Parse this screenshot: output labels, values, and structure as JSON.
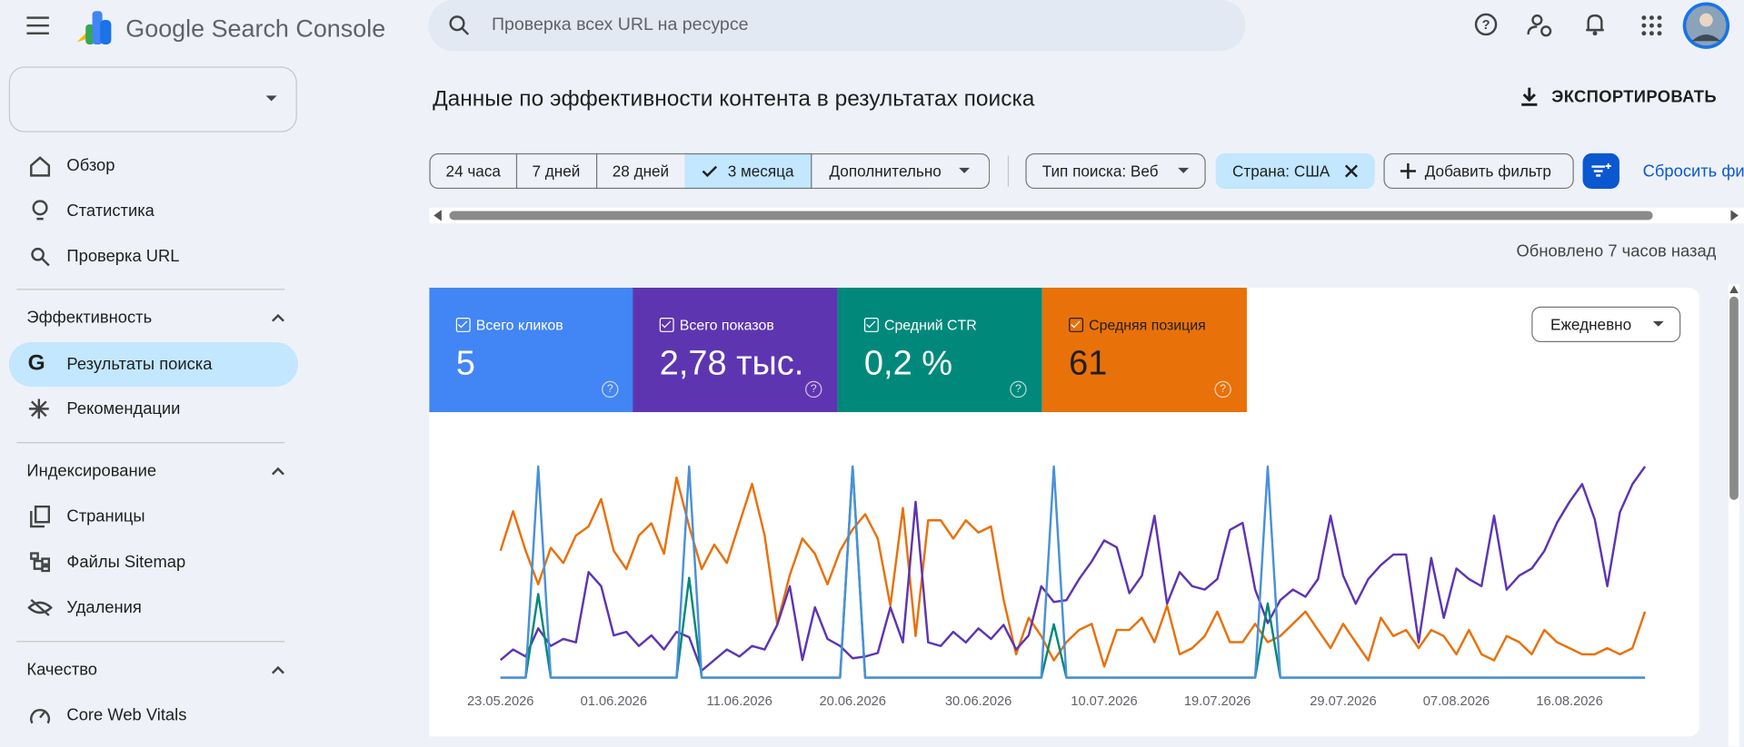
{
  "header": {
    "product": "Google Search Console",
    "search_placeholder": "Проверка всех URL на ресурсе"
  },
  "sidebar": {
    "nav": [
      "Обзор",
      "Статистика",
      "Проверка URL"
    ],
    "sections": [
      {
        "title": "Эффективность",
        "items": [
          "Результаты поиска",
          "Рекомендации"
        ]
      },
      {
        "title": "Индексирование",
        "items": [
          "Страницы",
          "Файлы Sitemap",
          "Удаления"
        ]
      },
      {
        "title": "Качество",
        "items": [
          "Core Web Vitals"
        ]
      }
    ]
  },
  "page": {
    "title": "Данные по эффективности контента в результатах поиска",
    "export": "ЭКСПОРТИРОВАТЬ",
    "ranges": [
      "24 часа",
      "7 дней",
      "28 дней",
      "3 месяца",
      "Дополнительно"
    ],
    "filters": [
      "Тип поиска: Веб",
      "Страна: США",
      "Добавить фильтр"
    ],
    "reset": "Сбросить фильтры",
    "updated": "Обновлено 7 часов назад",
    "granularity": "Ежедневно",
    "metrics": [
      {
        "label": "Всего кликов",
        "value": "5"
      },
      {
        "label": "Всего показов",
        "value": "2,78 тыс."
      },
      {
        "label": "Средний CTR",
        "value": "0,2 %"
      },
      {
        "label": "Средняя позиция",
        "value": "61"
      }
    ]
  },
  "chart_data": {
    "type": "line",
    "categories": [
      "23.05.2026",
      null,
      null,
      null,
      null,
      null,
      null,
      null,
      null,
      "01.06.2026",
      null,
      null,
      null,
      null,
      null,
      null,
      null,
      null,
      null,
      "11.06.2026",
      null,
      null,
      null,
      null,
      null,
      null,
      null,
      null,
      "20.06.2026",
      null,
      null,
      null,
      null,
      null,
      null,
      null,
      null,
      null,
      "30.06.2026",
      null,
      null,
      null,
      null,
      null,
      null,
      null,
      null,
      null,
      "10.07.2026",
      null,
      null,
      null,
      null,
      null,
      null,
      null,
      null,
      "19.07.2026",
      null,
      null,
      null,
      null,
      null,
      null,
      null,
      null,
      null,
      "29.07.2026",
      null,
      null,
      null,
      null,
      null,
      null,
      null,
      null,
      "07.08.2026",
      null,
      null,
      null,
      null,
      null,
      null,
      null,
      null,
      "16.08.2026",
      null,
      null,
      null,
      null,
      null,
      null
    ],
    "series": [
      {
        "name": "Всего кликов",
        "color": "#4a90d9",
        "values": [
          0,
          0,
          0,
          1,
          0,
          0,
          0,
          0,
          0,
          0,
          0,
          0,
          0,
          0,
          0,
          1,
          0,
          0,
          0,
          0,
          0,
          0,
          0,
          0,
          0,
          0,
          0,
          0,
          1,
          0,
          0,
          0,
          0,
          0,
          0,
          0,
          0,
          0,
          0,
          0,
          0,
          0,
          0,
          0,
          1,
          0,
          0,
          0,
          0,
          0,
          0,
          0,
          0,
          0,
          0,
          0,
          0,
          0,
          0,
          0,
          0,
          1,
          0,
          0,
          0,
          0,
          0,
          0,
          0,
          0,
          0,
          0,
          0,
          0,
          0,
          0,
          0,
          0,
          0,
          0,
          0,
          0,
          0,
          0,
          0,
          0,
          0,
          0,
          0,
          0,
          0,
          0
        ]
      },
      {
        "name": "Всего показов",
        "color": "#5e35b1",
        "values": [
          10,
          16,
          12,
          28,
          18,
          22,
          20,
          60,
          52,
          24,
          26,
          18,
          24,
          16,
          26,
          23,
          4,
          10,
          16,
          12,
          18,
          16,
          30,
          52,
          10,
          40,
          22,
          18,
          11,
          12,
          14,
          40,
          20,
          100,
          20,
          18,
          26,
          20,
          28,
          22,
          30,
          16,
          24,
          52,
          43,
          44,
          56,
          66,
          78,
          74,
          48,
          58,
          92,
          42,
          60,
          52,
          50,
          56,
          84,
          88,
          50,
          31,
          44,
          50,
          46,
          56,
          92,
          58,
          42,
          56,
          64,
          70,
          70,
          20,
          68,
          34,
          62,
          56,
          52,
          92,
          50,
          58,
          62,
          72,
          88,
          100,
          110,
          90,
          52,
          94,
          110,
          120
        ]
      },
      {
        "name": "Средний CTR",
        "color": "#00897b",
        "values": [
          0,
          0,
          0,
          3.6,
          0,
          0,
          0,
          0,
          0,
          0,
          0,
          0,
          0,
          0,
          0,
          4.3,
          0,
          0,
          0,
          0,
          0,
          0,
          0,
          0,
          0,
          0,
          0,
          0,
          9.1,
          0,
          0,
          0,
          0,
          0,
          0,
          0,
          0,
          0,
          0,
          0,
          0,
          0,
          0,
          0,
          2.3,
          0,
          0,
          0,
          0,
          0,
          0,
          0,
          0,
          0,
          0,
          0,
          0,
          0,
          0,
          0,
          0,
          3.2,
          0,
          0,
          0,
          0,
          0,
          0,
          0,
          0,
          0,
          0,
          0,
          0,
          0,
          0,
          0,
          0,
          0,
          0,
          0,
          0,
          0,
          0,
          0,
          0,
          0,
          0,
          0,
          0,
          0,
          0
        ]
      },
      {
        "name": "Средняя позиция",
        "color": "#e8710a",
        "reversed": true,
        "values": [
          44,
          31,
          44,
          55,
          43,
          48,
          39,
          36,
          27,
          44,
          50,
          39,
          35,
          45,
          20,
          36,
          50,
          42,
          48,
          35,
          22,
          39,
          68,
          52,
          40,
          45,
          55,
          44,
          37,
          32,
          40,
          62,
          30,
          72,
          34,
          34,
          40,
          34,
          38,
          36,
          60,
          78,
          66,
          72,
          80,
          74,
          70,
          68,
          82,
          70,
          70,
          66,
          74,
          62,
          78,
          76,
          72,
          64,
          74,
          74,
          68,
          74,
          72,
          68,
          64,
          70,
          76,
          68,
          74,
          80,
          66,
          72,
          70,
          76,
          70,
          72,
          78,
          70,
          78,
          80,
          72,
          74,
          78,
          70,
          74,
          76,
          78,
          78,
          76,
          78,
          76,
          64
        ]
      }
    ]
  }
}
